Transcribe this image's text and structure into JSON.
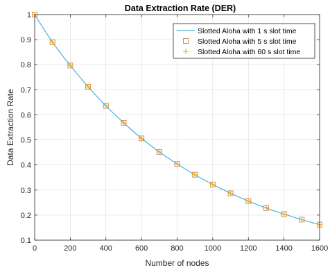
{
  "chart_data": {
    "type": "line",
    "title": "Data Extraction Rate (DER)",
    "xlabel": "Number of nodes",
    "ylabel": "Data Extraction Rate",
    "xlim": [
      0,
      1600
    ],
    "ylim": [
      0.1,
      1
    ],
    "xticks": [
      0,
      200,
      400,
      600,
      800,
      1000,
      1200,
      1400,
      1600
    ],
    "yticks": [
      0.1,
      0.2,
      0.3,
      0.4,
      0.5,
      0.6,
      0.7,
      0.8,
      0.9,
      1
    ],
    "grid": true,
    "legend_position": "top-right",
    "x": [
      0,
      100,
      200,
      300,
      400,
      500,
      600,
      700,
      800,
      900,
      1000,
      1100,
      1200,
      1300,
      1400,
      1500,
      1600
    ],
    "series": [
      {
        "name": "Slotted Aloha with 1 s slot time",
        "style": "line",
        "color": "#4db3d9",
        "values": [
          1.0,
          0.89,
          0.797,
          0.712,
          0.636,
          0.568,
          0.506,
          0.452,
          0.404,
          0.361,
          0.322,
          0.287,
          0.256,
          0.228,
          0.204,
          0.182,
          0.162
        ]
      },
      {
        "name": "Slotted Aloha with 5 s slot time",
        "style": "square",
        "color": "#d98c59",
        "values": [
          1.0,
          0.89,
          0.797,
          0.712,
          0.636,
          0.568,
          0.506,
          0.452,
          0.404,
          0.361,
          0.322,
          0.287,
          0.256,
          0.228,
          0.204,
          0.182,
          0.162
        ]
      },
      {
        "name": "Slotted Aloha with 60 s slot time",
        "style": "plus",
        "color": "#edb120",
        "values": [
          1.0,
          0.89,
          0.797,
          0.712,
          0.636,
          0.568,
          0.506,
          0.452,
          0.404,
          0.361,
          0.322,
          0.287,
          0.256,
          0.231,
          0.204,
          0.182,
          0.162
        ]
      }
    ]
  }
}
